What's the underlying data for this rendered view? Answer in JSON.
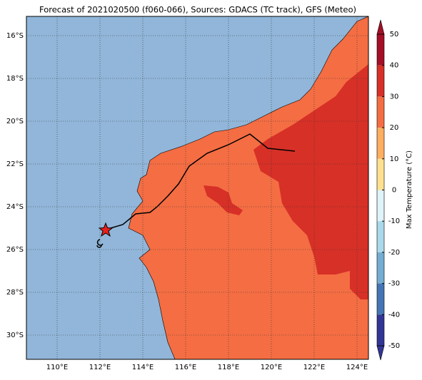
{
  "map": {
    "title": "Forecast of 2021020500 (f060-066), Sources: GDACS (TC track), GFS (Meteo)",
    "lat_labels": [
      "16°S",
      "18°S",
      "20°S",
      "22°S",
      "24°S",
      "26°S",
      "28°S",
      "30°S"
    ],
    "lon_labels": [
      "110°E",
      "112°E",
      "114°E",
      "116°E",
      "118°E",
      "120°E",
      "122°E",
      "124°E"
    ],
    "colorbar": {
      "label": "Max Temperature (°C)",
      "ticks": [
        50,
        40,
        30,
        20,
        10,
        0,
        -10,
        -20,
        -30,
        -40,
        -50
      ],
      "colors": [
        "#a50f26",
        "#d73027",
        "#f46d43",
        "#fdae61",
        "#fee090",
        "#e0f3f8",
        "#abd9e9",
        "#74add1",
        "#4575b4",
        "#313695"
      ]
    }
  }
}
